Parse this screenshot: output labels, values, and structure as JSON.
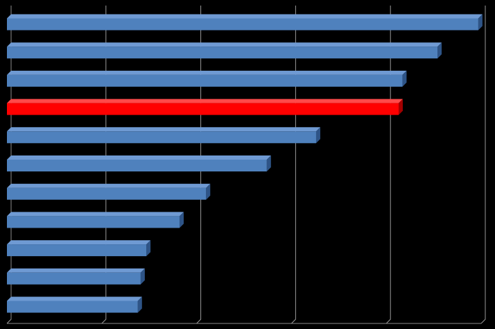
{
  "chart_data": {
    "type": "bar",
    "orientation": "horizontal",
    "style": "3d",
    "title": "",
    "xlabel": "",
    "ylabel": "",
    "categories": [
      "",
      "",
      "",
      "",
      "",
      "",
      "",
      "",
      "",
      "",
      ""
    ],
    "values": [
      4.97,
      4.54,
      4.17,
      4.13,
      3.26,
      2.74,
      2.1,
      1.82,
      1.47,
      1.41,
      1.38
    ],
    "highlight_index": 3,
    "xlim": [
      0,
      5
    ],
    "grid": true,
    "legend": "none",
    "colors": {
      "background": "#000000",
      "bar": "#4F81BD",
      "bar_top": "#6F9AD3",
      "bar_side": "#2E5487",
      "highlight": "#FF0000",
      "highlight_top": "#FF4A4A",
      "highlight_side": "#A30000",
      "gridline": "#9A9A9A",
      "floor": "#8C8C8C"
    }
  }
}
